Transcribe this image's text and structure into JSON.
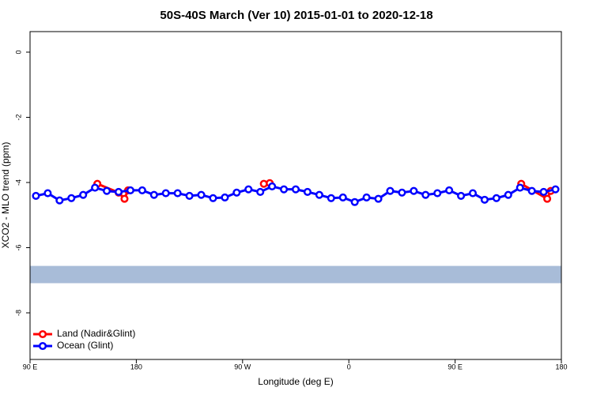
{
  "chart_data": {
    "type": "line",
    "title": "50S-40S March (Ver 10)   2015-01-01 to 2020-12-18",
    "xlabel": "Longitude (deg E)",
    "ylabel": "XCO2 - MLO trend (ppm)",
    "xlim": [
      90,
      540
    ],
    "ylim": [
      -9.43,
      0.63
    ],
    "xticks": [
      {
        "value": 90,
        "label": "90 E"
      },
      180,
      {
        "value": 270,
        "label": "90 W"
      },
      {
        "value": 360,
        "label": "0"
      },
      {
        "value": 450,
        "label": "90 E"
      },
      {
        "value": 540,
        "label": "180"
      }
    ],
    "yticks": [
      0,
      -2,
      -4,
      -6,
      -8
    ],
    "legend": "bottom-left",
    "band": {
      "ylim": [
        -6.56,
        -7.09
      ],
      "color": "#a8bcd8"
    },
    "series": [
      {
        "name": "Land (Nadir&Glint)",
        "color": "#ff0000",
        "x": [
          147,
          165,
          170,
          173,
          250,
          288,
          293,
          400,
          506,
          528,
          531
        ],
        "values": [
          -4.04,
          -4.31,
          -4.5,
          -4.24,
          null,
          -4.04,
          -4.02,
          null,
          -4.04,
          -4.5,
          -4.26
        ]
      },
      {
        "name": "Ocean (Glint)",
        "color": "#0000ff",
        "x": [
          95,
          105,
          115,
          125,
          135,
          145,
          155,
          165,
          175,
          185,
          195,
          205,
          215,
          225,
          235,
          245,
          255,
          265,
          275,
          285,
          295,
          305,
          315,
          325,
          335,
          345,
          355,
          365,
          375,
          385,
          395,
          405,
          415,
          425,
          435,
          445,
          455,
          465,
          475,
          485,
          495,
          505,
          515,
          525,
          535
        ],
        "values": [
          -4.41,
          -4.33,
          -4.55,
          -4.48,
          -4.38,
          -4.16,
          -4.26,
          -4.29,
          -4.24,
          -4.24,
          -4.38,
          -4.33,
          -4.33,
          -4.41,
          -4.38,
          -4.48,
          -4.46,
          -4.31,
          -4.21,
          -4.29,
          -4.12,
          -4.21,
          -4.21,
          -4.29,
          -4.38,
          -4.48,
          -4.46,
          -4.6,
          -4.46,
          -4.5,
          -4.26,
          -4.31,
          -4.26,
          -4.38,
          -4.33,
          -4.24,
          -4.41,
          -4.33,
          -4.53,
          -4.48,
          -4.38,
          -4.16,
          -4.26,
          -4.29,
          -4.21
        ]
      }
    ]
  }
}
